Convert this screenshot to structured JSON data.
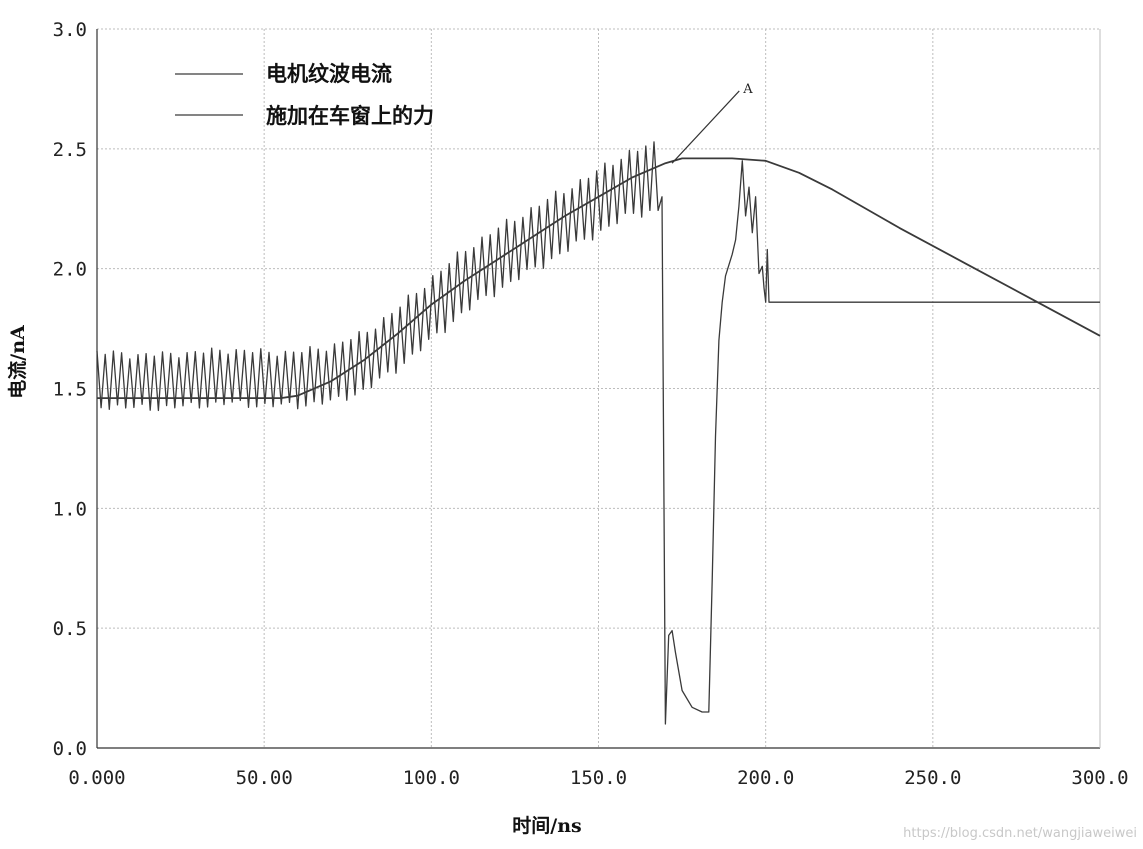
{
  "chart_data": {
    "type": "line",
    "xlabel": "时间/ns",
    "ylabel": "电流/nA",
    "xlim": [
      0,
      300
    ],
    "ylim": [
      0,
      3
    ],
    "x_ticks": [
      "0.000",
      "50.00",
      "100.0",
      "150.0",
      "200.0",
      "250.0",
      "300.0"
    ],
    "y_ticks": [
      "0.0",
      "0.5",
      "1.0",
      "1.5",
      "2.0",
      "2.5",
      "3.0"
    ],
    "grid": true,
    "legend_position": "top-left",
    "colors": {
      "line": "#3a3a3a",
      "grid": "#bdbdbd",
      "axis": "#333333"
    },
    "series": [
      {
        "name": "电机纹波电流",
        "style": "ripple",
        "ripple_period": 2.45,
        "ripple": [
          [
            0,
            0.13
          ],
          [
            60,
            0.13
          ],
          [
            100,
            0.15
          ],
          [
            150,
            0.15
          ],
          [
            168,
            0.16
          ]
        ],
        "x": [
          0,
          10,
          20,
          30,
          40,
          50,
          60,
          70,
          80,
          90,
          100,
          110,
          120,
          130,
          140,
          150,
          160,
          168,
          169,
          170,
          171,
          172,
          173,
          175,
          178,
          181,
          183,
          184,
          185,
          186,
          187,
          188,
          190,
          191,
          192,
          193,
          194,
          195,
          196,
          197,
          198,
          199,
          199.5,
          200,
          200.5,
          201,
          210,
          300
        ],
        "y": [
          1.54,
          1.53,
          1.53,
          1.54,
          1.55,
          1.54,
          1.54,
          1.56,
          1.61,
          1.71,
          1.83,
          1.95,
          2.04,
          2.12,
          2.2,
          2.28,
          2.36,
          2.38,
          2.3,
          0.1,
          0.47,
          0.49,
          0.4,
          0.24,
          0.17,
          0.15,
          0.15,
          0.7,
          1.3,
          1.7,
          1.86,
          1.97,
          2.06,
          2.12,
          2.26,
          2.45,
          2.22,
          2.34,
          2.15,
          2.3,
          1.98,
          2.01,
          1.92,
          1.86,
          2.08,
          1.86,
          1.86,
          1.86
        ]
      },
      {
        "name": "施加在车窗上的力",
        "style": "line",
        "x": [
          0,
          20,
          40,
          55,
          60,
          70,
          80,
          90,
          100,
          110,
          120,
          130,
          140,
          150,
          160,
          170,
          175,
          180,
          190,
          200,
          210,
          220,
          240,
          260,
          280,
          300
        ],
        "y": [
          1.46,
          1.46,
          1.46,
          1.46,
          1.47,
          1.53,
          1.62,
          1.73,
          1.85,
          1.95,
          2.04,
          2.13,
          2.22,
          2.3,
          2.38,
          2.44,
          2.46,
          2.46,
          2.46,
          2.45,
          2.4,
          2.33,
          2.17,
          2.02,
          1.87,
          1.72
        ]
      }
    ],
    "annotations": [
      {
        "text": "A",
        "x": 193,
        "y": 2.75,
        "points_to": [
          172,
          2.44
        ]
      }
    ]
  },
  "watermark": "https://blog.csdn.net/wangjiaweiwei"
}
